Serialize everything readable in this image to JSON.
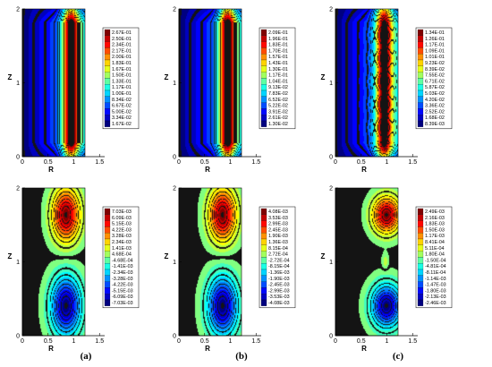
{
  "chart_data": [
    {
      "type": "heatmap",
      "panel": "a",
      "row": "top",
      "xlabel": "R",
      "ylabel": "Z",
      "xticks": [
        "0",
        "0.5",
        "1",
        "1.5"
      ],
      "yticks": [
        "0",
        "1",
        "2"
      ],
      "xlim": [
        0,
        1.6
      ],
      "ylim": [
        0,
        2
      ],
      "colormap": "jet",
      "legend": [
        "2.67E-01",
        "2.50E-01",
        "2.34E-01",
        "2.17E-01",
        "2.00E-01",
        "1.83E-01",
        "1.67E-01",
        "1.50E-01",
        "1.33E-01",
        "1.17E-01",
        "1.00E-01",
        "8.34E-02",
        "6.67E-02",
        "5.00E-02",
        "3.34E-02",
        "1.67E-02"
      ],
      "field": "annular"
    },
    {
      "type": "heatmap",
      "panel": "b",
      "row": "top",
      "xlabel": "R",
      "ylabel": "Z",
      "xticks": [
        "0",
        "0.5",
        "1",
        "1.5"
      ],
      "yticks": [
        "0",
        "1",
        "2"
      ],
      "xlim": [
        0,
        1.6
      ],
      "ylim": [
        0,
        2
      ],
      "colormap": "jet",
      "legend": [
        "2.09E-01",
        "1.96E-01",
        "1.83E-01",
        "1.70E-01",
        "1.57E-01",
        "1.43E-01",
        "1.30E-01",
        "1.17E-01",
        "1.04E-01",
        "9.13E-02",
        "7.83E-02",
        "6.52E-02",
        "5.22E-02",
        "3.91E-02",
        "2.61E-02",
        "1.30E-02"
      ],
      "field": "annular"
    },
    {
      "type": "heatmap",
      "panel": "c",
      "row": "top",
      "xlabel": "R",
      "ylabel": "Z",
      "xticks": [
        "0",
        "0.5",
        "1",
        "1.5"
      ],
      "yticks": [
        "0",
        "1",
        "2"
      ],
      "xlim": [
        0,
        1.6
      ],
      "ylim": [
        0,
        2
      ],
      "colormap": "jet",
      "legend": [
        "1.34E-01",
        "1.26E-01",
        "1.17E-01",
        "1.09E-01",
        "1.01E-01",
        "9.23E-02",
        "8.39E-02",
        "7.55E-02",
        "6.71E-02",
        "5.87E-02",
        "5.03E-02",
        "4.20E-02",
        "3.36E-02",
        "2.52E-02",
        "1.68E-02",
        "8.39E-03"
      ],
      "field": "annular-noisy"
    },
    {
      "type": "heatmap",
      "panel": "a",
      "row": "bottom",
      "xlabel": "R",
      "ylabel": "Z",
      "xticks": [
        "0",
        "0.5",
        "1",
        "1.5"
      ],
      "yticks": [
        "0",
        "1",
        "2"
      ],
      "xlim": [
        0,
        1.6
      ],
      "ylim": [
        0,
        2
      ],
      "colormap": "jet",
      "legend": [
        "7.03E-03",
        "6.09E-03",
        "5.15E-03",
        "4.22E-03",
        "3.28E-03",
        "2.34E-03",
        "1.41E-03",
        "4.68E-04",
        "-4.68E-04",
        "-1.41E-03",
        "-2.34E-03",
        "-3.28E-03",
        "-4.22E-03",
        "-5.15E-03",
        "-6.09E-03",
        "-7.03E-03"
      ],
      "field": "dipole"
    },
    {
      "type": "heatmap",
      "panel": "b",
      "row": "bottom",
      "xlabel": "R",
      "ylabel": "Z",
      "xticks": [
        "0",
        "0.5",
        "1",
        "1.5"
      ],
      "yticks": [
        "0",
        "1",
        "2"
      ],
      "xlim": [
        0,
        1.6
      ],
      "ylim": [
        0,
        2
      ],
      "colormap": "jet",
      "legend": [
        "4.08E-03",
        "3.53E-03",
        "2.99E-03",
        "2.45E-03",
        "1.90E-03",
        "1.36E-03",
        "8.15E-04",
        "2.72E-04",
        "-2.72E-04",
        "-8.15E-04",
        "-1.36E-03",
        "-1.90E-03",
        "-2.45E-03",
        "-2.99E-03",
        "-3.53E-03",
        "-4.08E-03"
      ],
      "field": "dipole"
    },
    {
      "type": "heatmap",
      "panel": "c",
      "row": "bottom",
      "xlabel": "R",
      "ylabel": "Z",
      "xticks": [
        "0",
        "0.5",
        "1",
        "1.5"
      ],
      "yticks": [
        "0",
        "1",
        "2"
      ],
      "xlim": [
        0,
        1.6
      ],
      "ylim": [
        0,
        2
      ],
      "colormap": "jet",
      "legend": [
        "2.49E-03",
        "2.16E-03",
        "1.83E-03",
        "1.50E-03",
        "1.17E-03",
        "8.41E-04",
        "5.11E-04",
        "1.80E-04",
        "-1.50E-04",
        "-4.81E-04",
        "-8.11E-04",
        "-1.14E-03",
        "-1.47E-03",
        "-1.80E-03",
        "-2.13E-03",
        "-2.46E-03"
      ],
      "field": "dipole-cells"
    }
  ],
  "captions": [
    "(a)",
    "(b)",
    "(c)"
  ]
}
